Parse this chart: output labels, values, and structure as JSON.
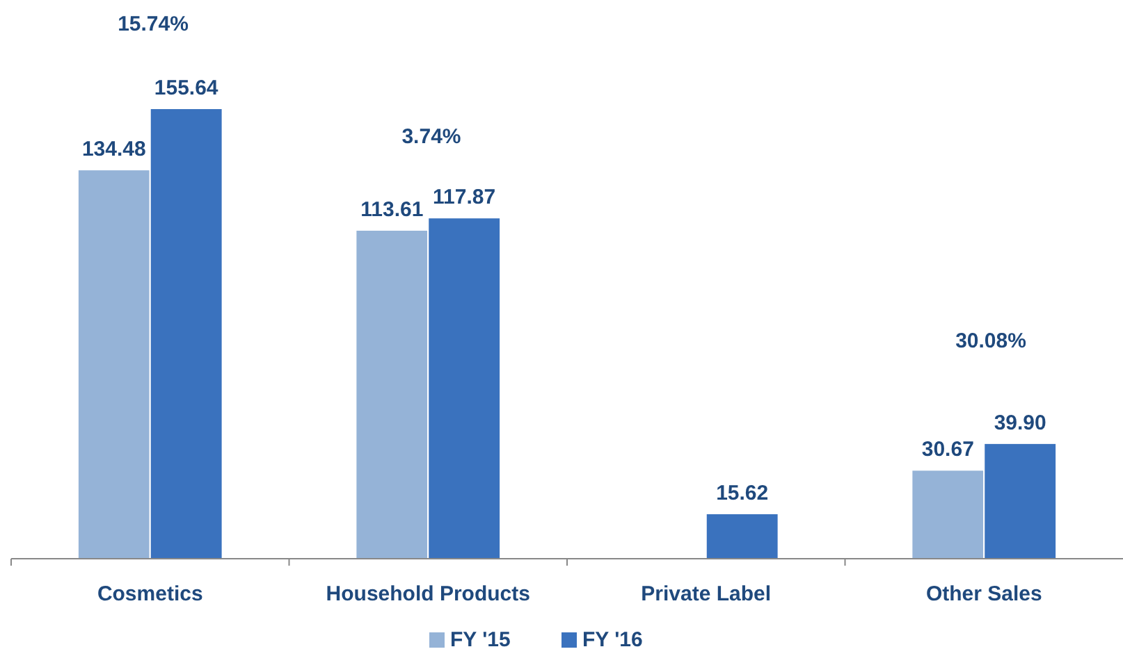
{
  "chart_data": {
    "type": "bar",
    "categories": [
      "Cosmetics",
      "Household Products",
      "Private Label",
      "Other Sales"
    ],
    "series": [
      {
        "name": "FY '15",
        "color": "#95b3d7",
        "values": [
          134.48,
          113.61,
          null,
          30.67
        ],
        "value_labels": [
          "134.48",
          "113.61",
          null,
          "30.67"
        ]
      },
      {
        "name": "FY '16",
        "color": "#3a72be",
        "values": [
          155.64,
          117.87,
          15.62,
          39.9
        ],
        "value_labels": [
          "155.64",
          "117.87",
          "15.62",
          "39.90"
        ]
      }
    ],
    "annotations": [
      "15.74%",
      "3.74%",
      "30.08%"
    ],
    "legend": "bottom"
  }
}
